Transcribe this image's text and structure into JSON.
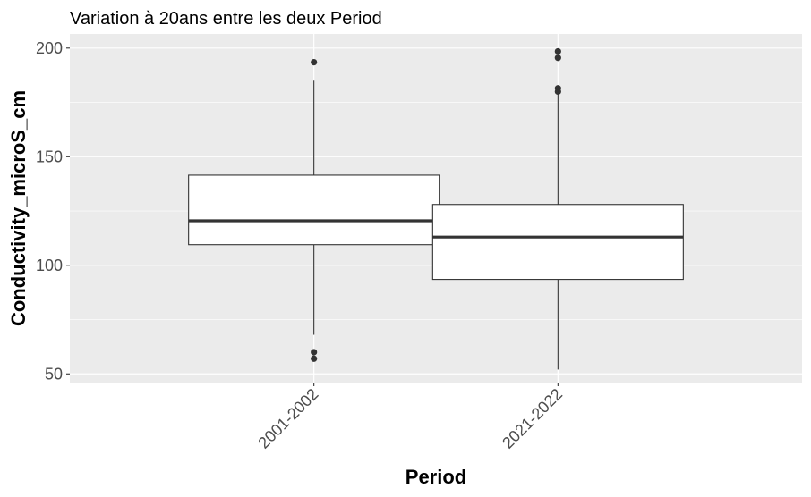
{
  "chart_data": {
    "type": "boxplot",
    "title": "Variation à 20ans entre les deux Period",
    "xlabel": "Period",
    "ylabel": "Conductivity_microS_cm",
    "categories": [
      "2001-2002",
      "2021-2022"
    ],
    "boxes": [
      {
        "category": "2001-2002",
        "whisker_low": 68,
        "q1": 109.5,
        "median": 120.5,
        "q3": 141.5,
        "whisker_high": 185,
        "outliers": [
          193.5,
          60,
          57
        ]
      },
      {
        "category": "2021-2022",
        "whisker_low": 52,
        "q1": 93.5,
        "median": 113,
        "q3": 128,
        "whisker_high": 179,
        "outliers": [
          198.5,
          195.5,
          181.5,
          180
        ]
      }
    ],
    "ylim": [
      46,
      206.5
    ],
    "yticks": [
      50,
      100,
      150,
      200
    ],
    "ytick_labels": [
      "50",
      "100",
      "150",
      "200"
    ],
    "grid": true,
    "colors": {
      "panel": "#ebebeb",
      "grid": "#ffffff",
      "box_fill": "#ffffff",
      "line": "#333333",
      "outlier": "#333333"
    }
  }
}
